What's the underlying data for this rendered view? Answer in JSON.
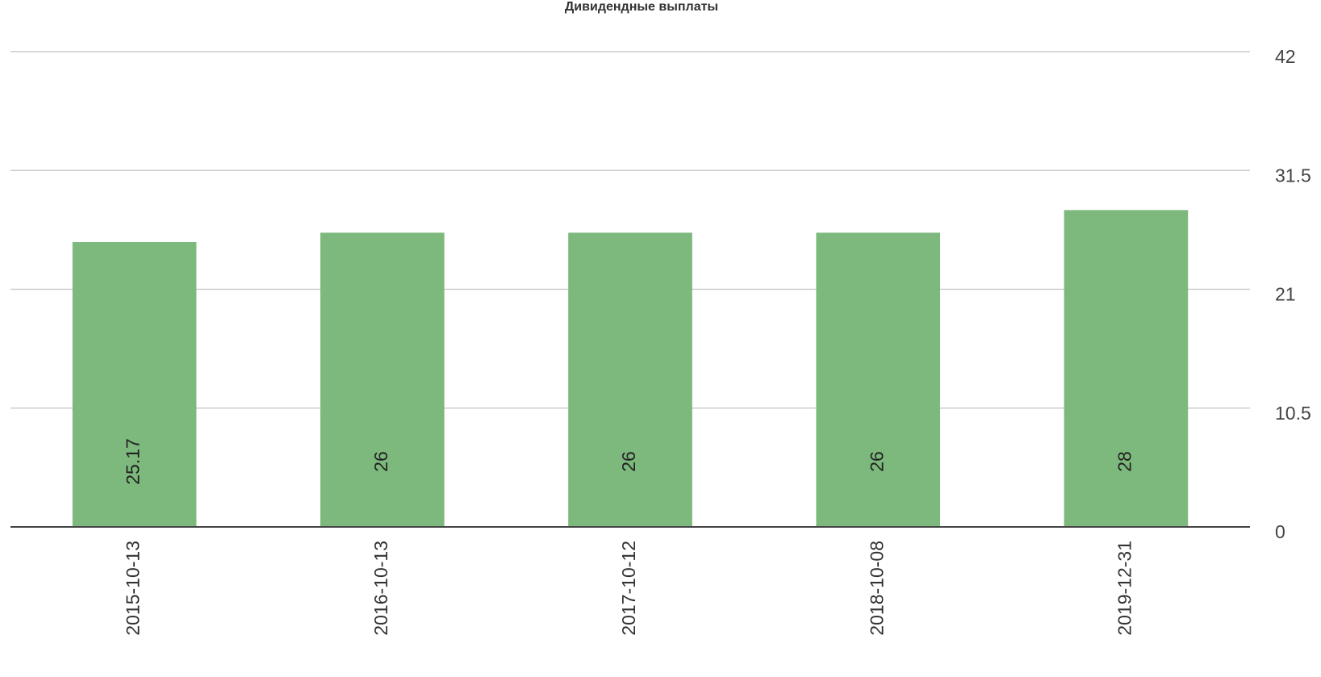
{
  "chart_data": {
    "type": "bar",
    "title": "Дивидендные выплаты",
    "categories": [
      "2015-10-13",
      "2016-10-13",
      "2017-10-12",
      "2018-10-08",
      "2019-12-31"
    ],
    "values": [
      25.17,
      26,
      26,
      26,
      28
    ],
    "color": "#7db97c",
    "ylim": [
      0,
      42
    ],
    "yticks": [
      0,
      10.5,
      21,
      31.5,
      42
    ],
    "grid": true
  }
}
